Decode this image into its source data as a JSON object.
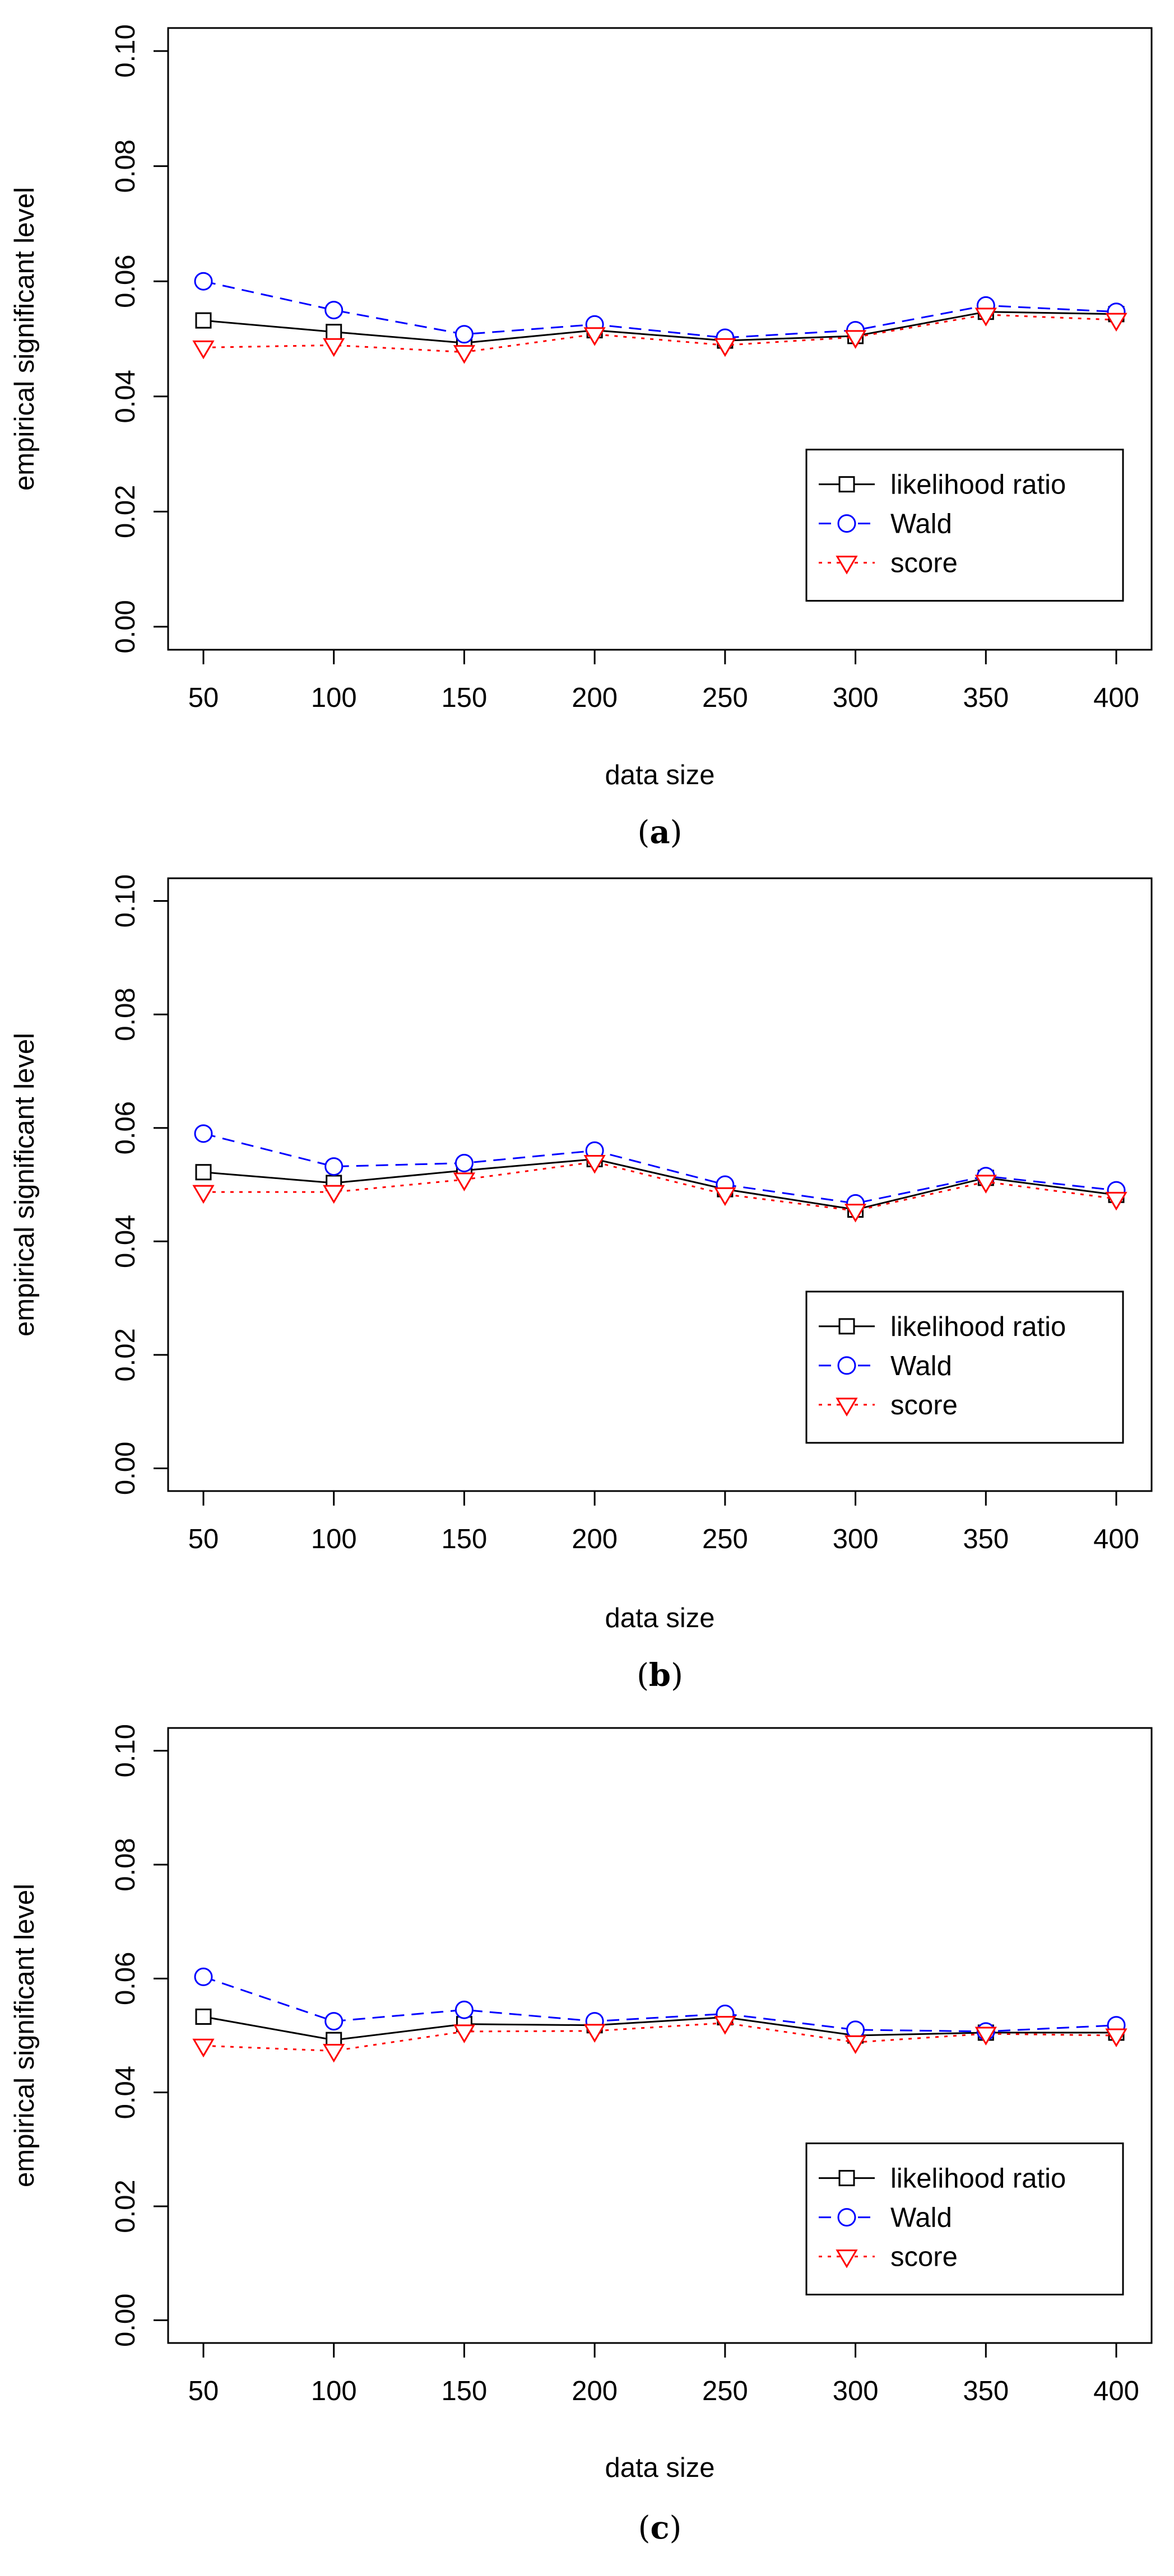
{
  "chart_data": [
    {
      "type": "line",
      "caption_letter": "a",
      "xlabel": "data size",
      "ylabel": "empirical significant level",
      "x": [
        50,
        100,
        150,
        200,
        250,
        300,
        350,
        400
      ],
      "x_tick_labels": [
        "50",
        "100",
        "150",
        "200",
        "250",
        "300",
        "350",
        "400"
      ],
      "y_ticks": [
        0.0,
        0.02,
        0.04,
        0.06,
        0.08,
        0.1
      ],
      "y_tick_labels": [
        "0.00",
        "0.02",
        "0.04",
        "0.06",
        "0.08",
        "0.10"
      ],
      "ylim": [
        -0.004,
        0.104
      ],
      "legend_position": "bottom-right",
      "series": [
        {
          "name": "likelihood ratio",
          "values": [
            0.0532,
            0.0512,
            0.0493,
            0.0515,
            0.0497,
            0.0505,
            0.0547,
            0.0543
          ]
        },
        {
          "name": "Wald",
          "values": [
            0.06,
            0.055,
            0.0508,
            0.0525,
            0.0502,
            0.0515,
            0.0558,
            0.0547
          ]
        },
        {
          "name": "score",
          "values": [
            0.0485,
            0.0489,
            0.0477,
            0.0508,
            0.0489,
            0.0503,
            0.0542,
            0.0533
          ]
        }
      ]
    },
    {
      "type": "line",
      "caption_letter": "b",
      "xlabel": "data size",
      "ylabel": "empirical significant level",
      "x": [
        50,
        100,
        150,
        200,
        250,
        300,
        350,
        400
      ],
      "x_tick_labels": [
        "50",
        "100",
        "150",
        "200",
        "250",
        "300",
        "350",
        "400"
      ],
      "y_ticks": [
        0.0,
        0.02,
        0.04,
        0.06,
        0.08,
        0.1
      ],
      "y_tick_labels": [
        "0.00",
        "0.02",
        "0.04",
        "0.06",
        "0.08",
        "0.10"
      ],
      "ylim": [
        -0.004,
        0.104
      ],
      "legend_position": "bottom-right",
      "series": [
        {
          "name": "likelihood ratio",
          "values": [
            0.0522,
            0.0503,
            0.0525,
            0.0545,
            0.0492,
            0.0456,
            0.0512,
            0.0482
          ]
        },
        {
          "name": "Wald",
          "values": [
            0.059,
            0.0532,
            0.0538,
            0.056,
            0.05,
            0.0467,
            0.0515,
            0.049
          ]
        },
        {
          "name": "score",
          "values": [
            0.0487,
            0.0487,
            0.0509,
            0.054,
            0.0483,
            0.0454,
            0.0505,
            0.0475
          ]
        }
      ]
    },
    {
      "type": "line",
      "caption_letter": "c",
      "xlabel": "data size",
      "ylabel": "empirical significant level",
      "x": [
        50,
        100,
        150,
        200,
        250,
        300,
        350,
        400
      ],
      "x_tick_labels": [
        "50",
        "100",
        "150",
        "200",
        "250",
        "300",
        "350",
        "400"
      ],
      "y_ticks": [
        0.0,
        0.02,
        0.04,
        0.06,
        0.08,
        0.1
      ],
      "y_tick_labels": [
        "0.00",
        "0.02",
        "0.04",
        "0.06",
        "0.08",
        "0.10"
      ],
      "ylim": [
        -0.004,
        0.104
      ],
      "legend_position": "bottom-right",
      "series": [
        {
          "name": "likelihood ratio",
          "values": [
            0.0533,
            0.0492,
            0.052,
            0.0518,
            0.0532,
            0.05,
            0.0505,
            0.0505
          ]
        },
        {
          "name": "Wald",
          "values": [
            0.0603,
            0.0525,
            0.0545,
            0.0525,
            0.0538,
            0.051,
            0.0507,
            0.0518
          ]
        },
        {
          "name": "score",
          "values": [
            0.0482,
            0.0473,
            0.0507,
            0.0508,
            0.0522,
            0.0488,
            0.0503,
            0.05
          ]
        }
      ]
    }
  ],
  "styles": {
    "series_colors": [
      "#000000",
      "#0000ff",
      "#ff0000"
    ],
    "frame_color": "#000000",
    "background_color": "#ffffff"
  }
}
